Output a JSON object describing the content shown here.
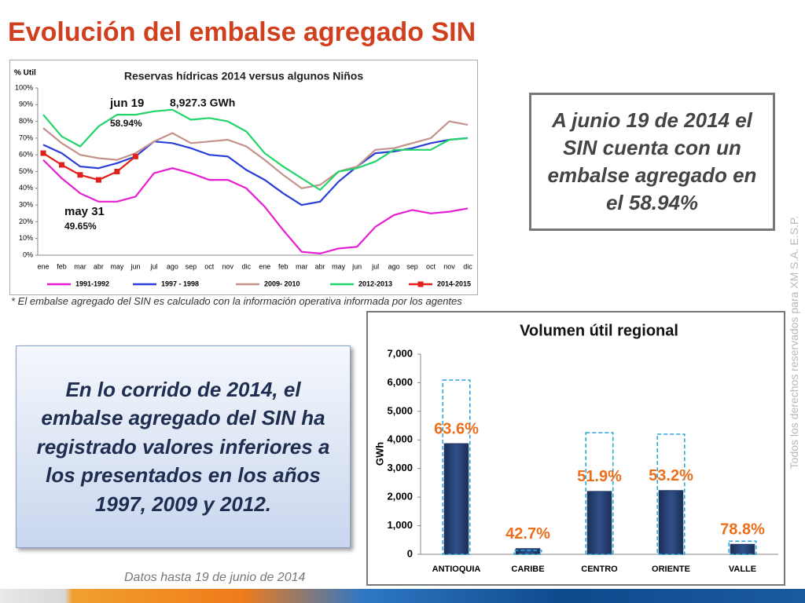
{
  "title": "Evolución del embalse agregado SIN",
  "chart_data": [
    {
      "type": "line",
      "title": "Reservas hídricas 2014 versus algunos Niños",
      "ylabel": "% Util",
      "categories": [
        "ene",
        "feb",
        "mar",
        "abr",
        "may",
        "jun",
        "jul",
        "ago",
        "sep",
        "oct",
        "nov",
        "dic",
        "ene",
        "feb",
        "mar",
        "abr",
        "may",
        "jun",
        "jul",
        "ago",
        "sep",
        "oct",
        "nov",
        "dic"
      ],
      "ylim": [
        0,
        100
      ],
      "yticks": [
        {
          "value": 0,
          "label": "0%"
        },
        {
          "value": 10,
          "label": "10%"
        },
        {
          "value": 20,
          "label": "20%"
        },
        {
          "value": 30,
          "label": "30%"
        },
        {
          "value": 40,
          "label": "40%"
        },
        {
          "value": 50,
          "label": "50%"
        },
        {
          "value": 60,
          "label": "60%"
        },
        {
          "value": 70,
          "label": "70%"
        },
        {
          "value": 80,
          "label": "80%"
        },
        {
          "value": 90,
          "label": "90%"
        },
        {
          "value": 100,
          "label": "100%"
        }
      ],
      "grid": false,
      "legend": "bottom",
      "series": [
        {
          "name": "1991-1992",
          "color": "#e61ed2",
          "values": [
            57,
            46,
            37,
            32,
            32,
            35,
            49,
            52,
            49,
            45,
            45,
            40,
            29,
            15,
            2,
            1,
            4,
            5,
            17,
            24,
            27,
            25,
            26,
            28
          ]
        },
        {
          "name": "1997 - 1998",
          "color": "#2a3fd6",
          "values": [
            66,
            61,
            53,
            52,
            55,
            59,
            68,
            67,
            64,
            60,
            59,
            51,
            45,
            37,
            30,
            32,
            44,
            53,
            61,
            62,
            64,
            67,
            69,
            70
          ]
        },
        {
          "name": "2009- 2010",
          "color": "#c4928a",
          "values": [
            76,
            67,
            60,
            58,
            57,
            61,
            68,
            73,
            67,
            68,
            69,
            65,
            57,
            48,
            40,
            42,
            50,
            53,
            63,
            64,
            67,
            70,
            80,
            78
          ]
        },
        {
          "name": "2012-2013",
          "color": "#22d46a",
          "values": [
            84,
            71,
            65,
            77,
            84,
            84,
            86,
            87,
            81,
            82,
            80,
            74,
            61,
            53,
            46,
            39,
            50,
            52,
            56,
            63,
            63,
            63,
            69,
            70
          ]
        },
        {
          "name": "2014-2015",
          "color": "#e0201a",
          "marker": "square",
          "values": [
            61,
            54,
            48,
            45,
            50,
            59,
            null,
            null,
            null,
            null,
            null,
            null,
            null,
            null,
            null,
            null,
            null,
            null,
            null,
            null,
            null,
            null,
            null,
            null
          ]
        }
      ],
      "annotations": [
        "jun 19",
        "8,927.3 GWh",
        "58.94%",
        "may 31",
        "49.65%"
      ],
      "footnote": "* El embalse agregado del SIN es calculado con la información operativa informada por los agentes"
    },
    {
      "type": "bar",
      "title": "Volumen útil regional",
      "ylabel": "GWh",
      "categories": [
        "ANTIOQUIA",
        "CARIBE",
        "CENTRO",
        "ORIENTE",
        "VALLE"
      ],
      "ylim": [
        0,
        7000
      ],
      "yticks": [
        0,
        {
          "value": 1000,
          "label": "1,000"
        },
        {
          "value": 2000,
          "label": "2,000"
        },
        {
          "value": 3000,
          "label": "3,000"
        },
        {
          "value": 4000,
          "label": "4,000"
        },
        {
          "value": 5000,
          "label": "5,000"
        },
        {
          "value": 6000,
          "label": "6,000"
        },
        {
          "value": 7000,
          "label": "7,000"
        }
      ],
      "grid": false,
      "series": [
        {
          "color": "#1f3864",
          "values": [
            3870,
            200,
            2200,
            2230,
            350
          ]
        },
        {
          "color": "#29a3dc",
          "style": "dashed",
          "values": [
            6090,
            140,
            4250,
            4200,
            460
          ]
        }
      ],
      "percent": {
        "color": "#ea6f1a",
        "values": [
          63.6,
          42.7,
          51.9,
          53.2,
          78.8
        ],
        "value_labels": [
          "63.6%",
          "42.7%",
          "51.9%",
          "53.2%",
          "78.8%"
        ]
      }
    }
  ],
  "notes": {
    "right_box": "A junio 19 de 2014 el SIN cuenta con un embalse agregado en el 58.94%",
    "left_box": "En lo corrido de 2014, el embalse agregado del SIN ha registrado valores inferiores a los presentados en los años 1997, 2009 y 2012.",
    "data_date": "Datos hasta 19 de junio de 2014",
    "rights": "Todos los derechos reservados para XM S.A. E.S.P."
  }
}
